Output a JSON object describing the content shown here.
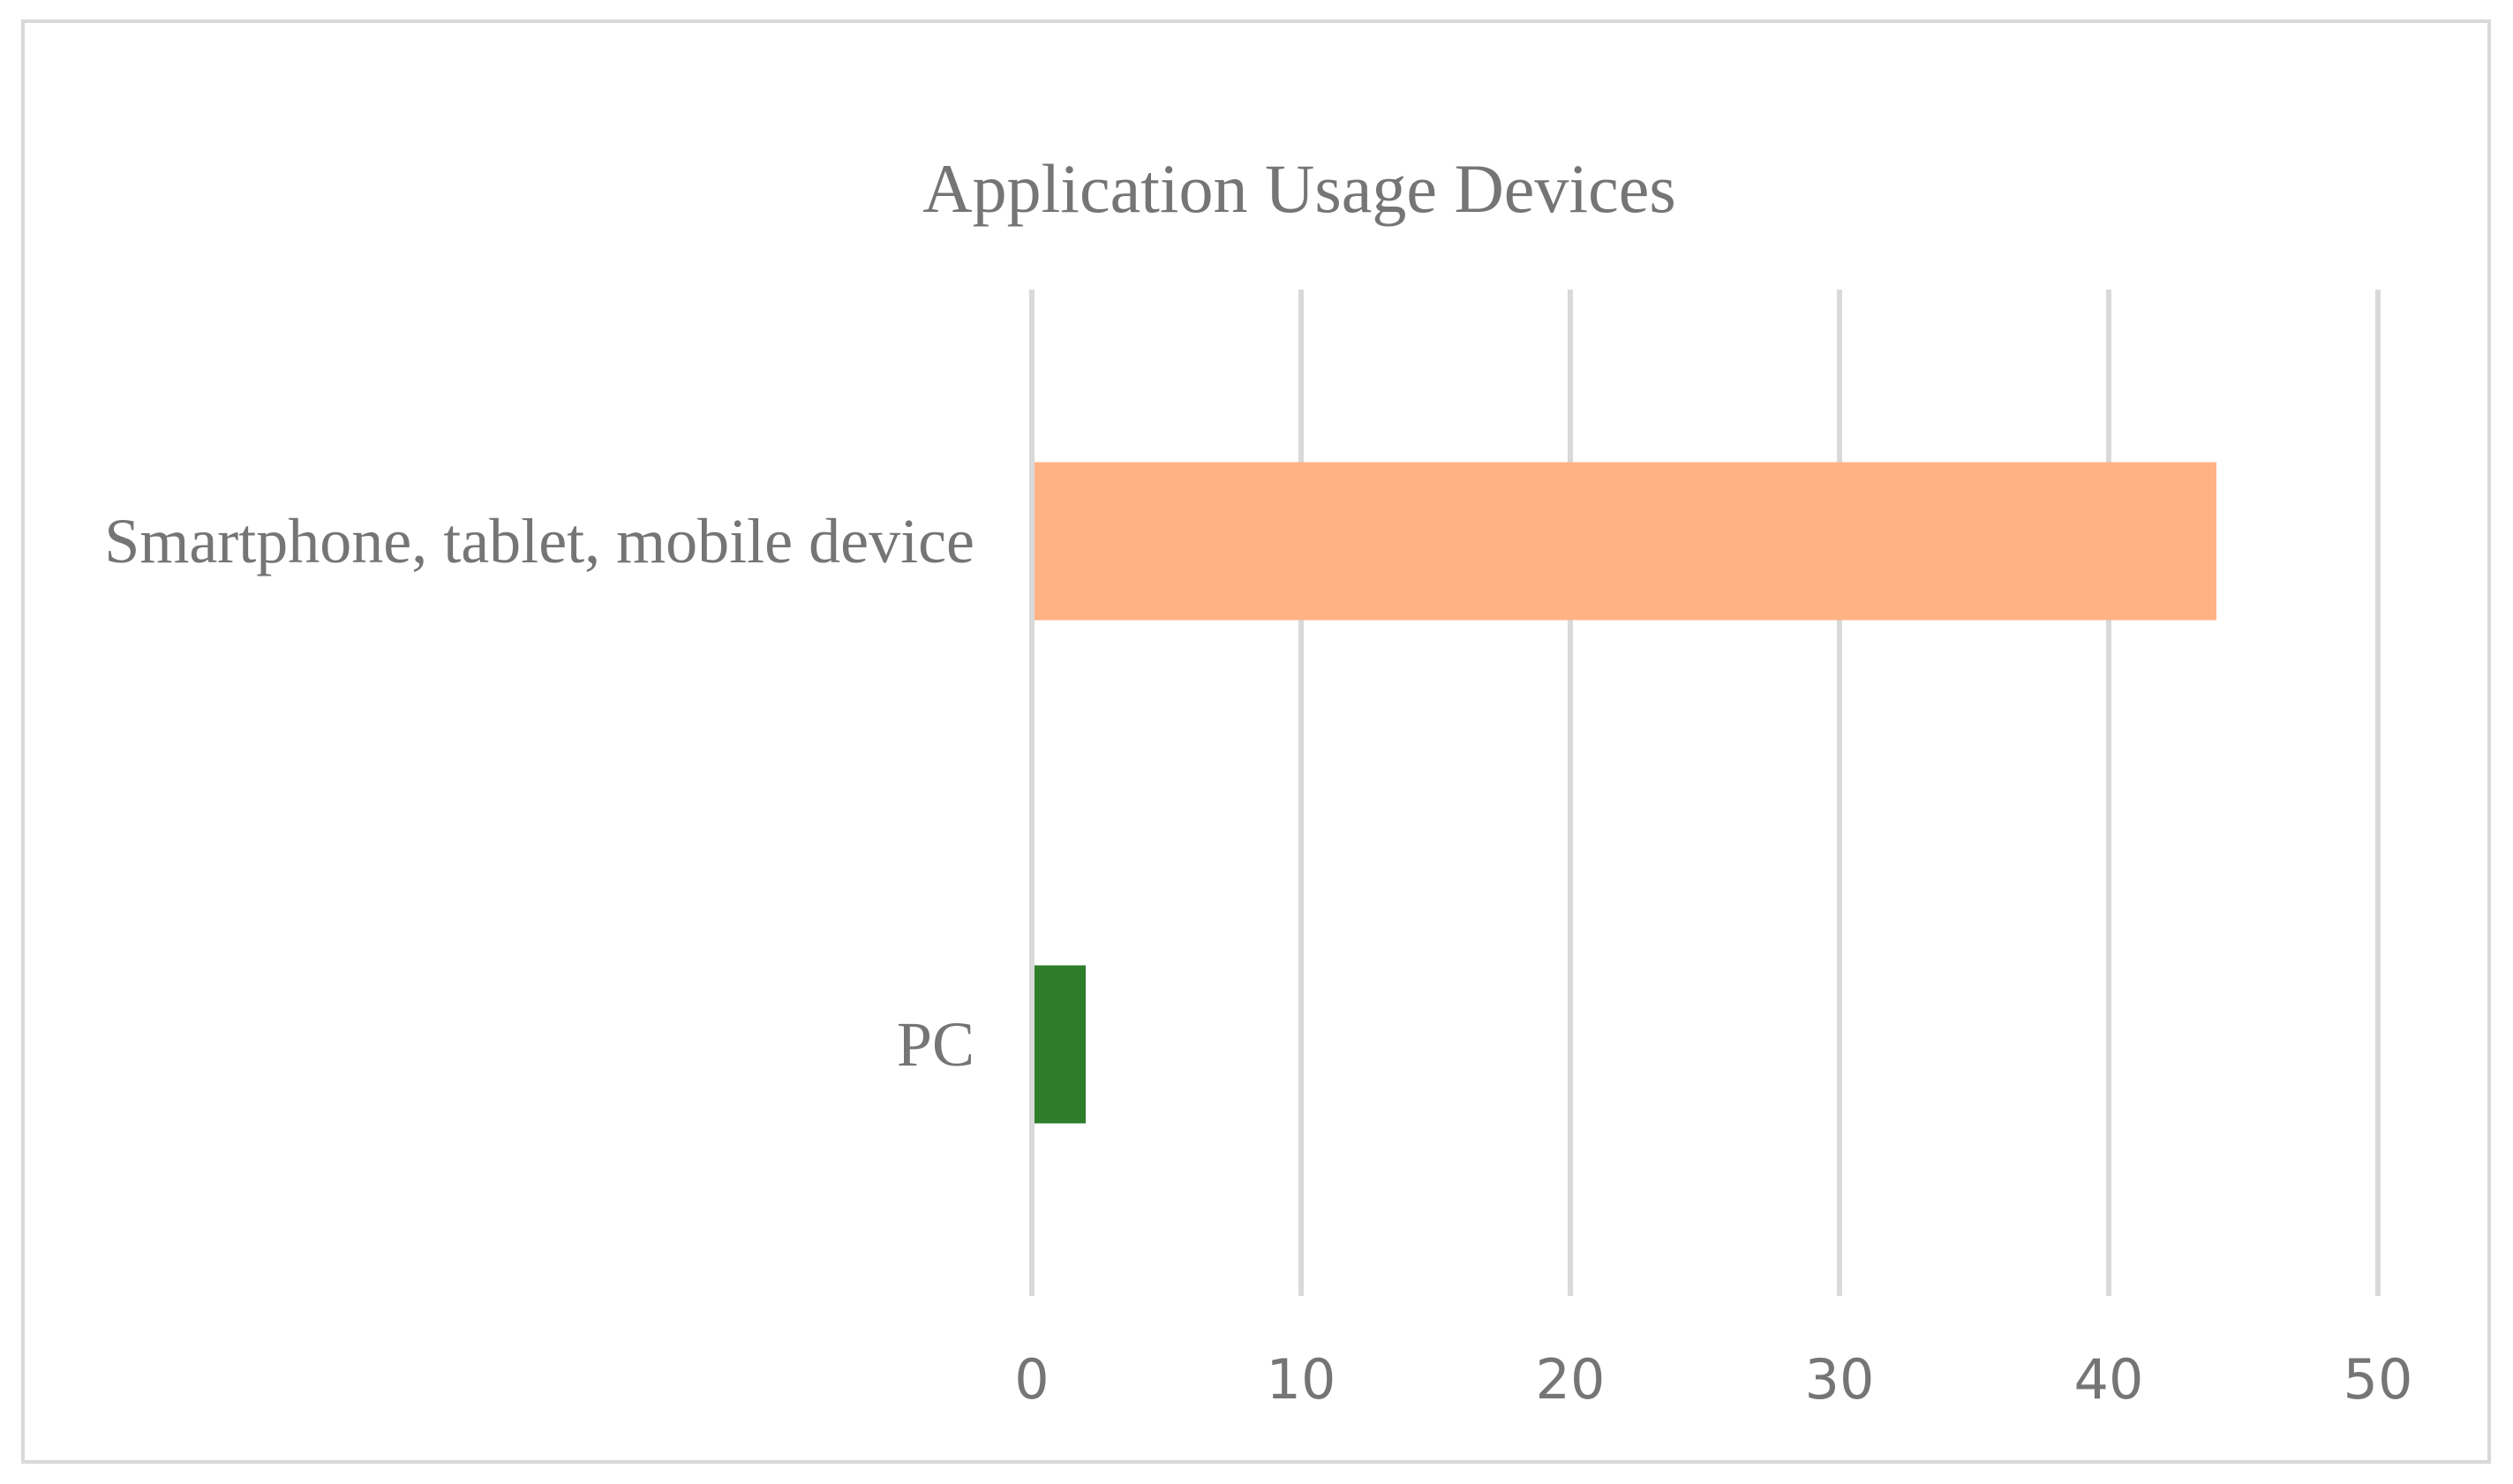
{
  "chart_data": {
    "type": "bar",
    "orientation": "horizontal",
    "title": "Application Usage Devices",
    "categories": [
      "Smartphone, tablet, mobile device",
      "PC"
    ],
    "values": [
      44,
      2
    ],
    "colors": [
      "#FFB385",
      "#2E7D2A"
    ],
    "xlim": [
      0,
      50
    ],
    "xticks": [
      "0",
      "10",
      "20",
      "30",
      "40",
      "50"
    ],
    "xlabel": "",
    "ylabel": "",
    "grid": "vertical",
    "legend": "none"
  }
}
